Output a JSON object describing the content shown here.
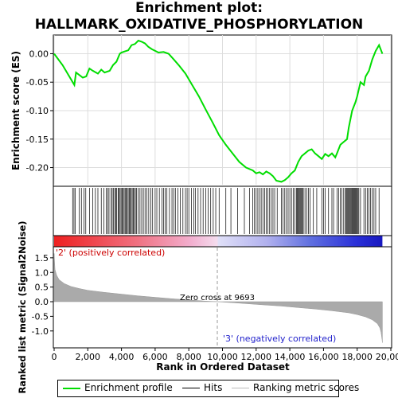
{
  "title_line1": "Enrichment plot:",
  "title_line2": "HALLMARK_OXIDATIVE_PHOSPHORYLATION",
  "legend": [
    {
      "label": "Enrichment profile",
      "color": "#00dd00"
    },
    {
      "label": "Hits",
      "color": "#000000"
    },
    {
      "label": "Ranking metric scores",
      "color": "#bbbbbb"
    }
  ],
  "chart_data": {
    "type": "line",
    "es_panel": {
      "ylabel": "Enrichment score (ES)",
      "ylim": [
        -0.23,
        0.03
      ],
      "yticks": [
        "0.00",
        "-0.05",
        "-0.10",
        "-0.15",
        "-0.20"
      ],
      "ytick_values": [
        0.0,
        -0.05,
        -0.1,
        -0.15,
        -0.2
      ],
      "x": [
        0,
        500,
        1200,
        1300,
        1700,
        1900,
        2100,
        2300,
        2600,
        2800,
        3000,
        3300,
        3500,
        3700,
        3900,
        4000,
        4200,
        4400,
        4600,
        4800,
        5000,
        5200,
        5400,
        5600,
        5800,
        6000,
        6200,
        6500,
        6800,
        7100,
        7400,
        7800,
        8200,
        8600,
        9000,
        9400,
        9800,
        10200,
        10600,
        11000,
        11400,
        11800,
        12000,
        12200,
        12400,
        12600,
        12800,
        13000,
        13200,
        13500,
        13700,
        13900,
        14100,
        14300,
        14500,
        14700,
        14900,
        15100,
        15300,
        15500,
        15700,
        15900,
        16100,
        16300,
        16500,
        16700,
        16800,
        17000,
        17200,
        17400,
        17500,
        17700,
        17900,
        18000,
        18200,
        18400,
        18500,
        18700,
        18900,
        19100,
        19300,
        19500
      ],
      "y": [
        0.0,
        -0.02,
        -0.055,
        -0.033,
        -0.042,
        -0.04,
        -0.026,
        -0.03,
        -0.035,
        -0.028,
        -0.033,
        -0.03,
        -0.02,
        -0.014,
        0.0,
        0.002,
        0.004,
        0.006,
        0.015,
        0.017,
        0.023,
        0.021,
        0.018,
        0.012,
        0.008,
        0.005,
        0.002,
        0.003,
        0.0,
        -0.01,
        -0.02,
        -0.035,
        -0.055,
        -0.075,
        -0.098,
        -0.12,
        -0.143,
        -0.16,
        -0.175,
        -0.19,
        -0.2,
        -0.205,
        -0.21,
        -0.208,
        -0.212,
        -0.207,
        -0.21,
        -0.215,
        -0.223,
        -0.225,
        -0.222,
        -0.217,
        -0.21,
        -0.205,
        -0.19,
        -0.18,
        -0.175,
        -0.17,
        -0.168,
        -0.175,
        -0.18,
        -0.185,
        -0.176,
        -0.18,
        -0.175,
        -0.182,
        -0.175,
        -0.16,
        -0.155,
        -0.15,
        -0.13,
        -0.1,
        -0.085,
        -0.075,
        -0.05,
        -0.055,
        -0.04,
        -0.03,
        -0.01,
        0.005,
        0.015,
        0.0
      ]
    },
    "hits": [
      1100,
      1180,
      1250,
      1500,
      1620,
      1780,
      1880,
      2100,
      2300,
      2450,
      2600,
      2800,
      2950,
      3100,
      3180,
      3260,
      3380,
      3450,
      3520,
      3600,
      3660,
      3720,
      3800,
      3860,
      3920,
      3980,
      4050,
      4100,
      4160,
      4220,
      4280,
      4340,
      4400,
      4460,
      4520,
      4580,
      4640,
      4700,
      4760,
      4830,
      4900,
      5000,
      5100,
      5200,
      5300,
      5400,
      5500,
      5620,
      5750,
      5850,
      6000,
      6100,
      6250,
      6400,
      6500,
      6600,
      6700,
      6850,
      7000,
      7100,
      7200,
      7350,
      7500,
      7650,
      7800,
      7900,
      8000,
      8150,
      8300,
      8400,
      8550,
      8700,
      8850,
      9000,
      9150,
      9300,
      9450,
      9600,
      9800,
      10200,
      10500,
      10900,
      11300,
      11600,
      11800,
      11900,
      12000,
      12100,
      12200,
      12300,
      12400,
      12500,
      12600,
      12700,
      12800,
      12900,
      13000,
      13100,
      13250,
      13500,
      13600,
      13700,
      13800,
      13900,
      14000,
      14100,
      14200,
      14300,
      14400,
      14450,
      14500,
      14550,
      14600,
      14650,
      14700,
      14750,
      14800,
      14900,
      15000,
      15100,
      15200,
      15400,
      15600,
      15900,
      16000,
      16100,
      16300,
      16500,
      16600,
      16800,
      16900,
      17000,
      17100,
      17200,
      17300,
      17350,
      17400,
      17450,
      17500,
      17550,
      17600,
      17650,
      17700,
      17750,
      17800,
      17850,
      17900,
      17950,
      18000,
      18050,
      18100,
      18200,
      18400,
      18500,
      18600,
      18700,
      18800,
      18900,
      19000,
      19100,
      19300
    ],
    "metric_panel": {
      "ylabel": "Ranked list metric (Signal2Noise)",
      "ylim": [
        -1.55,
        1.85
      ],
      "yticks": [
        "1.5",
        "1.0",
        "0.5",
        "0.0",
        "-0.5",
        "-1.0"
      ],
      "ytick_values": [
        1.5,
        1.0,
        0.5,
        0.0,
        -0.5,
        -1.0
      ],
      "x": [
        0,
        50,
        150,
        300,
        600,
        1000,
        1500,
        2000,
        3000,
        4000,
        5000,
        6000,
        7000,
        8000,
        9000,
        9693,
        10500,
        11500,
        12500,
        13500,
        14500,
        15500,
        16500,
        17500,
        18000,
        18500,
        18900,
        19200,
        19350,
        19420,
        19480,
        19500
      ],
      "y": [
        1.65,
        1.1,
        0.9,
        0.75,
        0.62,
        0.52,
        0.45,
        0.39,
        0.32,
        0.26,
        0.2,
        0.15,
        0.1,
        0.06,
        0.02,
        0.0,
        -0.03,
        -0.07,
        -0.11,
        -0.15,
        -0.2,
        -0.25,
        -0.31,
        -0.38,
        -0.44,
        -0.52,
        -0.62,
        -0.75,
        -0.9,
        -1.05,
        -1.3,
        -1.4
      ],
      "pos_label": "'2' (positively correlated)",
      "neg_label": "'3' (negatively correlated)",
      "zero_cross_label": "Zero cross at 9693",
      "zero_cross": 9693
    },
    "xlabel": "Rank in Ordered Dataset",
    "xlim": [
      0,
      20000
    ],
    "xticks": [
      "0",
      "2,000",
      "4,000",
      "6,000",
      "8,000",
      "10,000",
      "12,000",
      "14,000",
      "16,000",
      "18,000",
      "20,000"
    ],
    "xtick_values": [
      0,
      2000,
      4000,
      6000,
      8000,
      10000,
      12000,
      14000,
      16000,
      18000,
      20000
    ],
    "n_genes": 19500,
    "colors": {
      "profile": "#00dd00",
      "hits": "#000000",
      "metric": "#aaaaaa",
      "pos": "#ee2222",
      "neg": "#2233dd"
    }
  }
}
